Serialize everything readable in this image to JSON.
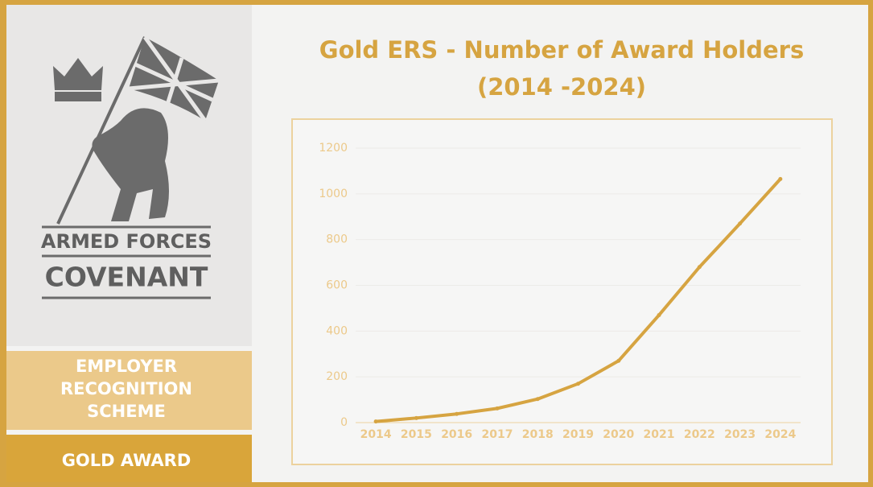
{
  "chart_data": {
    "type": "line",
    "title": "Gold ERS - Number of Award Holders",
    "subtitle": "(2014 -2024)",
    "categories": [
      "2014",
      "2015",
      "2016",
      "2017",
      "2018",
      "2019",
      "2020",
      "2021",
      "2022",
      "2023",
      "2024"
    ],
    "values": [
      5,
      20,
      38,
      62,
      103,
      170,
      270,
      470,
      680,
      870,
      1065
    ],
    "color": "#d6a441",
    "ylim": [
      0,
      1200
    ],
    "yticks": [
      0,
      200,
      400,
      600,
      800,
      1000,
      1200
    ],
    "grid": true
  },
  "sidebar": {
    "logo_line1": "ARMED FORCES",
    "logo_line2": "COVENANT",
    "scheme": [
      "EMPLOYER",
      "RECOGNITION",
      "SCHEME"
    ],
    "award": "GOLD AWARD"
  }
}
